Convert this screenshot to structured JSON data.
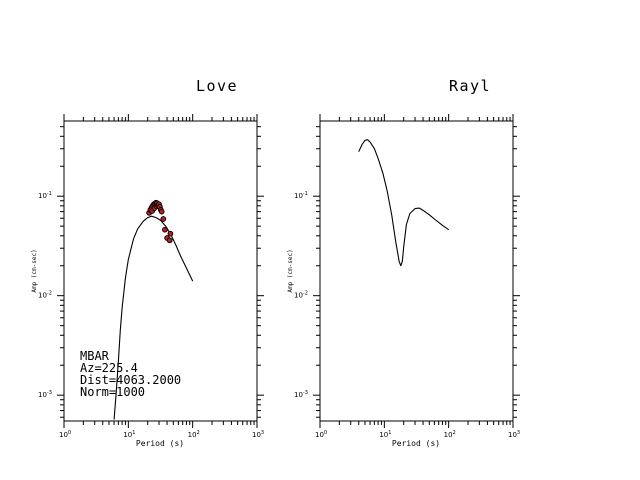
{
  "chart_data": [
    {
      "type": "line",
      "title": "Love",
      "xlabel": "Period (s)",
      "ylabel": "Amp (cm-sec)",
      "x_scale": "log",
      "y_scale": "log",
      "xlim": [
        1,
        1000
      ],
      "ylim": [
        0.00055,
        0.57
      ],
      "x_ticks": [
        {
          "v": 1,
          "b": "10",
          "e": "0"
        },
        {
          "v": 10,
          "b": "10",
          "e": "1"
        },
        {
          "v": 100,
          "b": "10",
          "e": "2"
        },
        {
          "v": 1000,
          "b": "10",
          "e": "3"
        }
      ],
      "y_ticks": [
        {
          "v": 0.1,
          "b": "10",
          "e": "-1"
        },
        {
          "v": 0.01,
          "b": "10",
          "e": "-2"
        },
        {
          "v": 0.001,
          "b": "10",
          "e": "-3"
        }
      ],
      "series": [
        {
          "name": "",
          "color": "#000000",
          "x": [
            6.0,
            6.5,
            7.0,
            7.5,
            8.0,
            9.0,
            10.0,
            12.0,
            14.0,
            17.0,
            20.0,
            23.0,
            27.0,
            32.0,
            38.0,
            45.0,
            55.0,
            65.0,
            80.0,
            100.0
          ],
          "y": [
            0.00057,
            0.0011,
            0.0022,
            0.0045,
            0.0075,
            0.015,
            0.023,
            0.037,
            0.047,
            0.056,
            0.061,
            0.063,
            0.061,
            0.057,
            0.05,
            0.042,
            0.032,
            0.025,
            0.019,
            0.014
          ]
        }
      ],
      "observations": {
        "color": "#b22222",
        "x": [
          21.0,
          22.0,
          23.0,
          23.5,
          24.0,
          25.0,
          25.5,
          26.0,
          27.0,
          27.5,
          28.0,
          29.0,
          30.0,
          31.0,
          32.0,
          33.0,
          35.0,
          37.0,
          40.0,
          44.0,
          45.0
        ],
        "y": [
          0.068,
          0.073,
          0.077,
          0.071,
          0.08,
          0.083,
          0.076,
          0.084,
          0.086,
          0.079,
          0.085,
          0.081,
          0.083,
          0.078,
          0.073,
          0.07,
          0.059,
          0.046,
          0.038,
          0.036,
          0.042
        ]
      },
      "annotation": [
        "MBAR",
        "Az=225.4",
        "Dist=4063.2000",
        "Norm=1000"
      ]
    },
    {
      "type": "line",
      "title": "Rayl",
      "xlabel": "Period (s)",
      "ylabel": "Amp (cm-sec)",
      "x_scale": "log",
      "y_scale": "log",
      "xlim": [
        1,
        1000
      ],
      "ylim": [
        0.00055,
        0.57
      ],
      "x_ticks": [
        {
          "v": 1,
          "b": "10",
          "e": "0"
        },
        {
          "v": 10,
          "b": "10",
          "e": "1"
        },
        {
          "v": 100,
          "b": "10",
          "e": "2"
        },
        {
          "v": 1000,
          "b": "10",
          "e": "3"
        }
      ],
      "y_ticks": [
        {
          "v": 0.1,
          "b": "10",
          "e": "-1"
        },
        {
          "v": 0.01,
          "b": "10",
          "e": "-2"
        },
        {
          "v": 0.001,
          "b": "10",
          "e": "-3"
        }
      ],
      "series": [
        {
          "name": "",
          "color": "#000000",
          "x": [
            4.0,
            4.5,
            5.0,
            5.5,
            6.0,
            7.0,
            8.0,
            9.5,
            11.0,
            13.0,
            15.0,
            17.0,
            18.0,
            19.0,
            20.0,
            22.0,
            25.0,
            30.0,
            35.0,
            40.0,
            50.0,
            60.0,
            80.0,
            100.0
          ],
          "y": [
            0.28,
            0.33,
            0.365,
            0.37,
            0.35,
            0.3,
            0.24,
            0.17,
            0.115,
            0.065,
            0.035,
            0.022,
            0.02,
            0.022,
            0.031,
            0.052,
            0.067,
            0.075,
            0.076,
            0.072,
            0.065,
            0.059,
            0.051,
            0.046
          ]
        }
      ]
    }
  ]
}
